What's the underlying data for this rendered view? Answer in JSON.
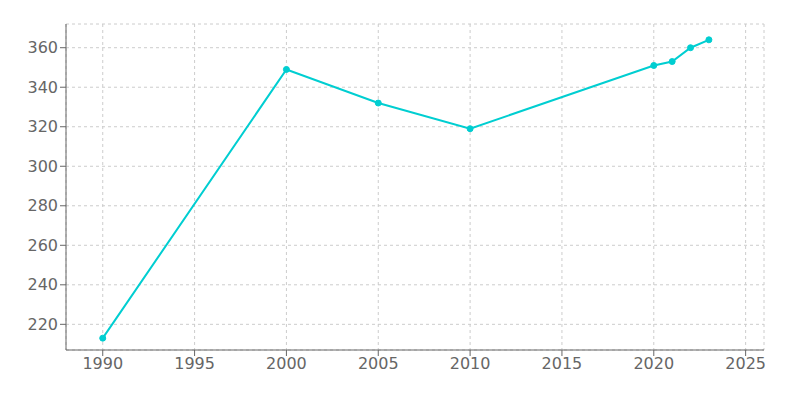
{
  "chart_data": {
    "type": "line",
    "x": [
      1990,
      2000,
      2005,
      2010,
      2020,
      2021,
      2022,
      2023
    ],
    "values": [
      213,
      349,
      332,
      319,
      351,
      353,
      360,
      364
    ],
    "color": "#00CED1",
    "marker": "o",
    "xlim": [
      1988,
      2026
    ],
    "ylim": [
      207,
      372
    ],
    "xticks": [
      1990,
      1995,
      2000,
      2005,
      2010,
      2015,
      2020,
      2025
    ],
    "yticks": [
      220,
      240,
      260,
      280,
      300,
      320,
      340,
      360
    ],
    "grid": true
  }
}
